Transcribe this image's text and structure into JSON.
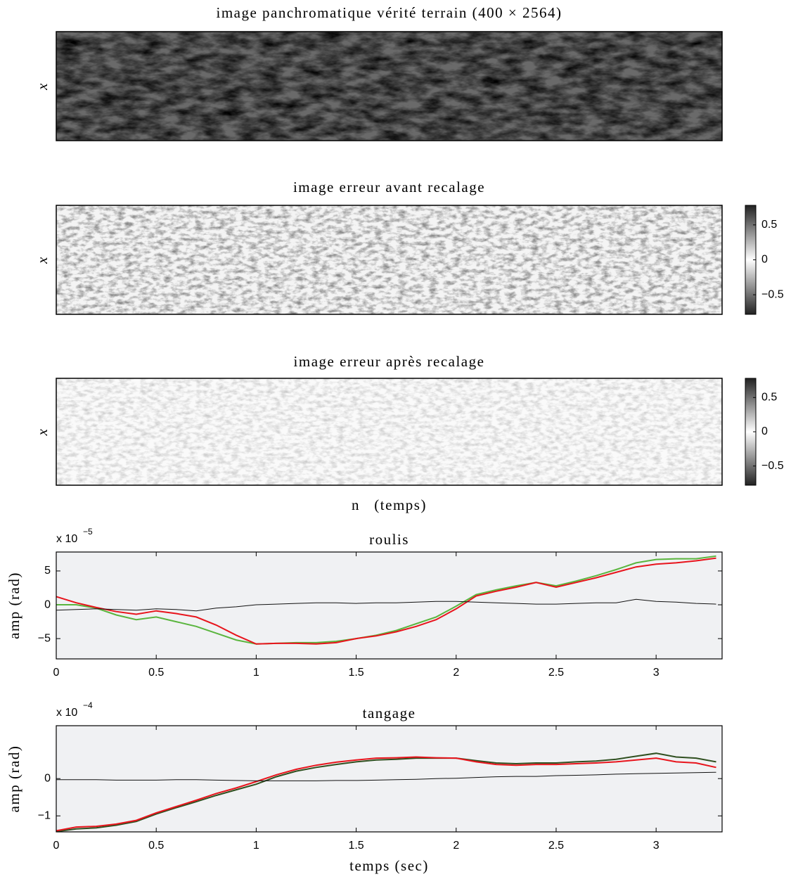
{
  "images": [
    {
      "title": "image panchromatique vérité terrain (400 × 2564)",
      "ylabel": "x"
    },
    {
      "title": "image erreur avant recalage",
      "ylabel": "x",
      "colorbar": {
        "ylim": [
          -0.78,
          0.78
        ],
        "yticks": [
          0.5,
          0,
          {
            "value": -0.5,
            "label": "−0.5"
          }
        ]
      }
    },
    {
      "title": "image erreur après recalage",
      "ylabel": "x",
      "xlabel": "n   (temps)",
      "colorbar": {
        "ylim": [
          -0.78,
          0.78
        ],
        "yticks": [
          0.5,
          0,
          {
            "value": -0.5,
            "label": "−0.5"
          }
        ]
      }
    }
  ],
  "chart_data": [
    {
      "type": "line",
      "title": "roulis",
      "ylabel": "amp (rad)",
      "multiplier": {
        "base": "x 10",
        "exponent": "−5"
      },
      "xlim": [
        0,
        3.33
      ],
      "xticks": [
        0,
        0.5,
        1,
        1.5,
        2,
        2.5,
        3
      ],
      "ylim": [
        -8,
        7.8
      ],
      "yticks": [
        {
          "value": -5,
          "label": "−5"
        },
        0,
        5
      ],
      "x": [
        0,
        0.1,
        0.2,
        0.3,
        0.4,
        0.5,
        0.6,
        0.7,
        0.8,
        0.9,
        1,
        1.1,
        1.2,
        1.3,
        1.4,
        1.5,
        1.6,
        1.7,
        1.8,
        1.9,
        2,
        2.1,
        2.2,
        2.3,
        2.4,
        2.5,
        2.6,
        2.7,
        2.8,
        2.9,
        3,
        3.1,
        3.2,
        3.3
      ],
      "series": [
        {
          "color": "#5ab53e",
          "values": [
            0,
            0,
            -0.5,
            -1.5,
            -2.2,
            -1.8,
            -2.5,
            -3.2,
            -4.2,
            -5.2,
            -5.8,
            -5.7,
            -5.6,
            -5.6,
            -5.4,
            -5,
            -4.5,
            -3.8,
            -2.8,
            -1.8,
            -0.2,
            1.5,
            2.2,
            2.8,
            3.3,
            2.8,
            3.5,
            4.3,
            5.2,
            6.2,
            6.7,
            6.8,
            6.8,
            7.2
          ]
        },
        {
          "color": "#e8141c",
          "values": [
            1.2,
            0.3,
            -0.4,
            -1,
            -1.4,
            -0.9,
            -1.3,
            -1.8,
            -3,
            -4.5,
            -5.8,
            -5.7,
            -5.7,
            -5.8,
            -5.6,
            -5,
            -4.6,
            -4,
            -3.2,
            -2.2,
            -0.6,
            1.3,
            2,
            2.6,
            3.3,
            2.6,
            3.3,
            4,
            4.8,
            5.6,
            6,
            6.2,
            6.5,
            6.9
          ]
        },
        {
          "color": "#111111",
          "values": [
            -0.8,
            -0.7,
            -0.6,
            -0.7,
            -0.8,
            -0.6,
            -0.7,
            -0.9,
            -0.5,
            -0.3,
            0,
            0.1,
            0.2,
            0.3,
            0.3,
            0.2,
            0.3,
            0.3,
            0.4,
            0.5,
            0.5,
            0.4,
            0.3,
            0.2,
            0.1,
            0.1,
            0.2,
            0.3,
            0.3,
            0.8,
            0.5,
            0.4,
            0.2,
            0.1
          ]
        }
      ]
    },
    {
      "type": "line",
      "title": "tangage",
      "ylabel": "amp (rad)",
      "xlabel": "temps (sec)",
      "multiplier": {
        "base": "x 10",
        "exponent": "−4"
      },
      "xlim": [
        0,
        3.33
      ],
      "xticks": [
        0,
        0.5,
        1,
        1.5,
        2,
        2.5,
        3
      ],
      "ylim": [
        -1.43,
        1.42
      ],
      "yticks": [
        {
          "value": -1,
          "label": "−1"
        },
        0
      ],
      "x": [
        0,
        0.1,
        0.2,
        0.3,
        0.4,
        0.5,
        0.6,
        0.7,
        0.8,
        0.9,
        1,
        1.1,
        1.2,
        1.3,
        1.4,
        1.5,
        1.6,
        1.7,
        1.8,
        1.9,
        2,
        2.1,
        2.2,
        2.3,
        2.4,
        2.5,
        2.6,
        2.7,
        2.8,
        2.9,
        3,
        3.1,
        3.2,
        3.3
      ],
      "series": [
        {
          "color": "#2f4f1f",
          "values": [
            -1.42,
            -1.35,
            -1.32,
            -1.25,
            -1.15,
            -0.95,
            -0.78,
            -0.62,
            -0.45,
            -0.3,
            -0.15,
            0.05,
            0.2,
            0.3,
            0.38,
            0.45,
            0.5,
            0.52,
            0.55,
            0.55,
            0.55,
            0.48,
            0.42,
            0.4,
            0.42,
            0.42,
            0.45,
            0.47,
            0.52,
            0.6,
            0.68,
            0.58,
            0.55,
            0.45
          ]
        },
        {
          "color": "#e8141c",
          "values": [
            -1.4,
            -1.3,
            -1.28,
            -1.22,
            -1.12,
            -0.92,
            -0.75,
            -0.58,
            -0.4,
            -0.25,
            -0.08,
            0.1,
            0.25,
            0.36,
            0.44,
            0.5,
            0.55,
            0.56,
            0.58,
            0.56,
            0.55,
            0.45,
            0.38,
            0.36,
            0.38,
            0.38,
            0.4,
            0.42,
            0.45,
            0.5,
            0.55,
            0.45,
            0.42,
            0.3
          ]
        },
        {
          "color": "#111111",
          "values": [
            -0.03,
            -0.03,
            -0.03,
            -0.04,
            -0.04,
            -0.04,
            -0.03,
            -0.03,
            -0.04,
            -0.05,
            -0.06,
            -0.06,
            -0.06,
            -0.06,
            -0.05,
            -0.05,
            -0.04,
            -0.03,
            -0.02,
            0,
            0.01,
            0.03,
            0.05,
            0.06,
            0.06,
            0.08,
            0.09,
            0.1,
            0.12,
            0.13,
            0.14,
            0.15,
            0.16,
            0.17
          ]
        }
      ]
    }
  ]
}
